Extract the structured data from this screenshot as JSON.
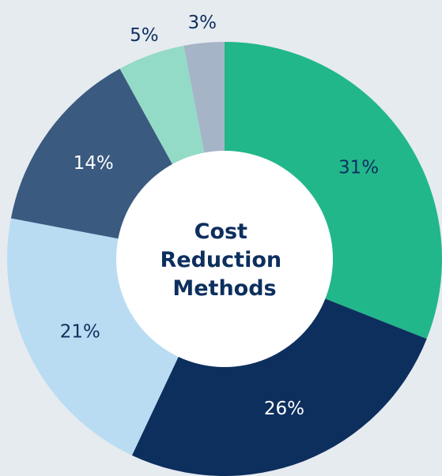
{
  "chart_data": {
    "type": "donut",
    "title": "Cost Reduction Methods",
    "series": [
      {
        "values": [
          31,
          26,
          21,
          14,
          5,
          3
        ],
        "value_labels": [
          "31%",
          "26%",
          "21%",
          "14%",
          "5%",
          "3%"
        ],
        "colors": [
          "#22b78a",
          "#0d2f5e",
          "#b9dcf2",
          "#3a5a80",
          "#93dbc6",
          "#a6b4c8"
        ]
      }
    ]
  }
}
